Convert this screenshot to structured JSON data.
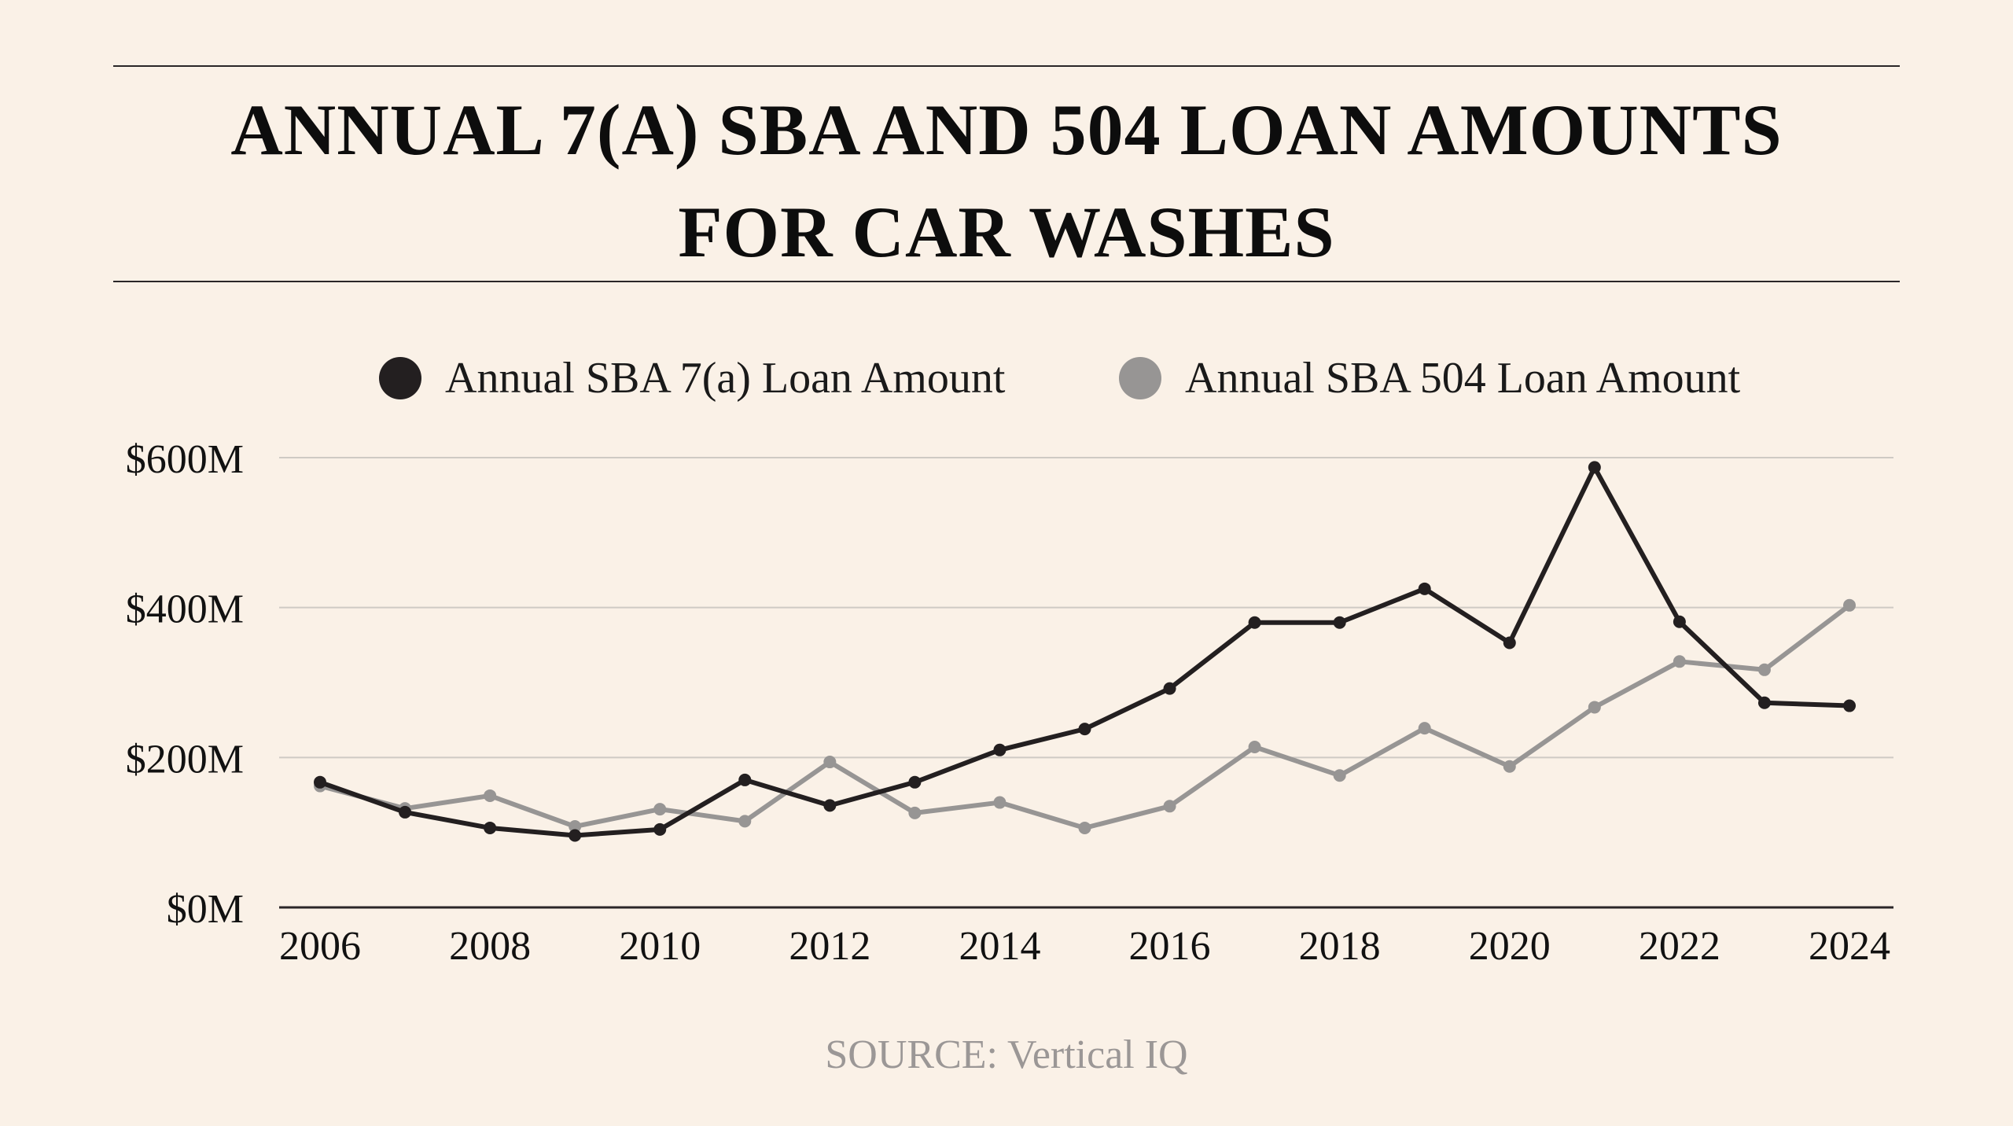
{
  "chart_data": {
    "type": "line",
    "title": "ANNUAL 7(A) SBA AND 504 LOAN AMOUNTS FOR CAR WASHES",
    "title_lines": [
      "ANNUAL 7(A) SBA AND 504 LOAN AMOUNTS",
      "FOR CAR WASHES"
    ],
    "xlabel": "",
    "ylabel": "",
    "x": [
      2006,
      2007,
      2008,
      2009,
      2010,
      2011,
      2012,
      2013,
      2014,
      2015,
      2016,
      2017,
      2018,
      2019,
      2020,
      2021,
      2022,
      2023,
      2024
    ],
    "x_ticks": [
      "2006",
      "2008",
      "2010",
      "2012",
      "2014",
      "2016",
      "2018",
      "2020",
      "2022",
      "2024"
    ],
    "x_tick_values": [
      2006,
      2008,
      2010,
      2012,
      2014,
      2016,
      2018,
      2020,
      2022,
      2024
    ],
    "y_ticks": [
      "$0M",
      "$200M",
      "$400M",
      "$600M"
    ],
    "y_tick_values": [
      0,
      200,
      400,
      600
    ],
    "ylim": [
      0,
      600
    ],
    "y_unit": "$M",
    "grid": true,
    "legend_position": "top",
    "series": [
      {
        "name": "Annual SBA 7(a) Loan Amount",
        "color": "#231f20",
        "values": [
          167,
          127,
          106,
          96,
          104,
          170,
          136,
          167,
          210,
          238,
          292,
          380,
          380,
          425,
          353,
          587,
          381,
          273,
          269
        ]
      },
      {
        "name": "Annual SBA 504 Loan Amount",
        "color": "#979594",
        "values": [
          162,
          132,
          149,
          108,
          131,
          115,
          194,
          126,
          140,
          106,
          135,
          214,
          176,
          239,
          188,
          267,
          328,
          317,
          403
        ]
      }
    ],
    "source": "SOURCE: Vertical IQ"
  },
  "colors": {
    "background": "#faf1e7",
    "grid": "#cfcac4",
    "axis": "#2a2628",
    "source_text": "#9b9796"
  }
}
